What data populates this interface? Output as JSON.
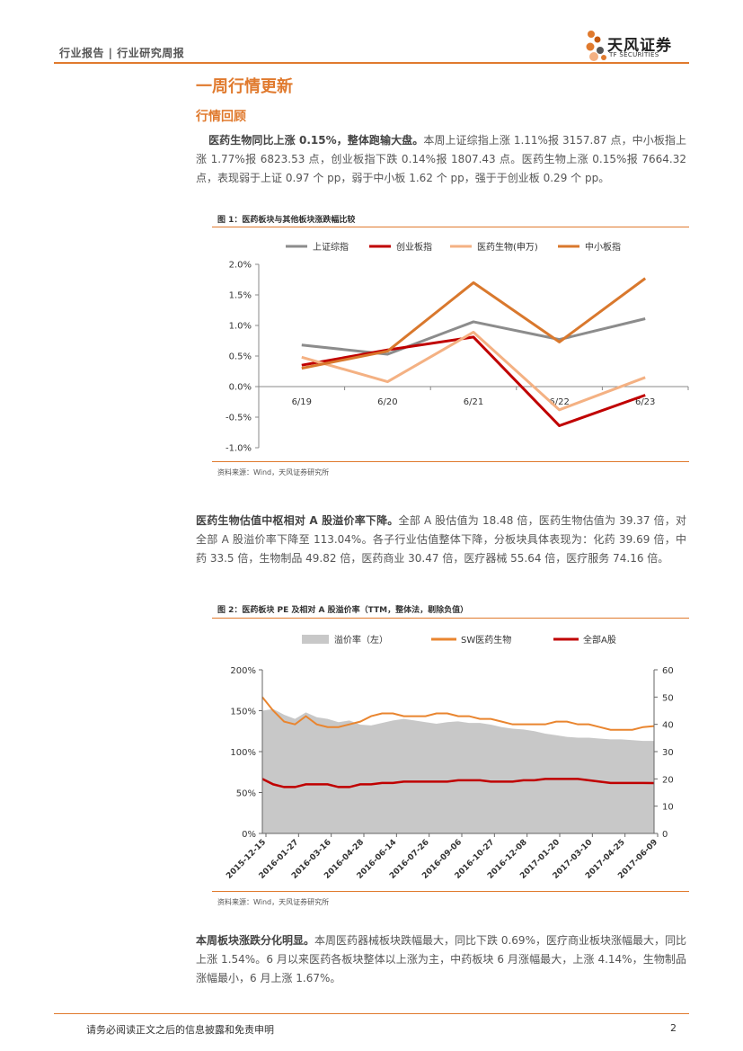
{
  "header": {
    "category": "行业报告 | 行业研究周报",
    "brand_cn": "天风证券",
    "brand_en": "TF SECURITIES"
  },
  "section": {
    "title": "一周行情更新",
    "subtitle": "行情回顾"
  },
  "paragraph1": {
    "lead": "医药生物同比上涨 0.15%，整体跑输大盘。",
    "text": "本周上证综指上涨 1.11%报 3157.87 点，中小板指上涨 1.77%报 6823.53 点，创业板指下跌 0.14%报 1807.43 点。医药生物上涨 0.15%报 7664.32 点，表现弱于上证 0.97 个 pp，弱于中小板 1.62 个 pp，强于于创业板 0.29 个 pp。"
  },
  "figure1": {
    "title": "图 1：医药板块与其他板块涨跌幅比较",
    "source": "资料来源：Wind，天风证券研究所"
  },
  "paragraph2": {
    "lead": "医药生物估值中枢相对 A 股溢价率下降。",
    "text": "全部 A 股估值为 18.48 倍，医药生物估值为 39.37 倍，对全部 A 股溢价率下降至 113.04%。各子行业估值整体下降，分板块具体表现为：化药 39.69 倍，中药 33.5 倍，生物制品 49.82 倍，医药商业 30.47 倍，医疗器械 55.64 倍，医疗服务 74.16 倍。"
  },
  "figure2": {
    "title": "图 2：医药板块 PE 及相对 A 股溢价率（TTM，整体法，剔除负值）",
    "source": "资料来源：Wind，天风证券研究所"
  },
  "paragraph3": {
    "lead": "本周板块涨跌分化明显。",
    "text": "本周医药器械板块跌幅最大，同比下跌 0.69%，医疗商业板块涨幅最大，同比上涨 1.54%。6 月以来医药各板块整体以上涨为主，中药板块 6 月涨幅最大，上涨 4.14%，生物制品涨幅最小，6 月上涨 1.67%。"
  },
  "footer": {
    "disclaimer": "请务必阅读正文之后的信息披露和免责申明",
    "page": "2"
  },
  "colors": {
    "accent": "#e07a2e",
    "gray": "#8c8c8c",
    "red": "#c00000",
    "light": "#f4b183",
    "orange": "#d9782d",
    "area": "#c8c8c8"
  },
  "chart_data": [
    {
      "type": "line",
      "categories": [
        "6/19",
        "6/20",
        "6/21",
        "6/22",
        "6/23"
      ],
      "series": [
        {
          "name": "上证综指",
          "values": [
            0.68,
            0.53,
            1.06,
            0.77,
            1.11
          ]
        },
        {
          "name": "创业板指",
          "values": [
            0.35,
            0.6,
            0.81,
            -0.64,
            -0.14
          ]
        },
        {
          "name": "医药生物(申万)",
          "values": [
            0.48,
            0.08,
            0.89,
            -0.38,
            0.15
          ]
        },
        {
          "name": "中小板指",
          "values": [
            0.3,
            0.58,
            1.7,
            0.73,
            1.77
          ]
        }
      ],
      "yticks": [
        "2.0%",
        "1.5%",
        "1.0%",
        "0.5%",
        "0.0%",
        "-0.5%",
        "-1.0%"
      ],
      "ylim": [
        -1.0,
        2.0
      ]
    },
    {
      "type": "area",
      "x_ticks": [
        "2015-12-15",
        "2016-01-27",
        "2016-03-16",
        "2016-04-28",
        "2016-06-14",
        "2016-07-26",
        "2016-09-06",
        "2016-10-27",
        "2016-12-08",
        "2017-01-20",
        "2017-03-10",
        "2017-04-25",
        "2017-06-09"
      ],
      "y_left_ticks": [
        "200%",
        "150%",
        "100%",
        "50%",
        "0%"
      ],
      "y_right_ticks": [
        "60",
        "50",
        "40",
        "30",
        "20",
        "10",
        "0"
      ],
      "legend": [
        "溢价率（左）",
        "SW医药生物",
        "全部A股"
      ],
      "series": [
        {
          "name": "溢价率（左）",
          "axis": "left",
          "values": [
            150,
            152,
            145,
            140,
            148,
            142,
            140,
            136,
            138,
            133,
            132,
            135,
            138,
            140,
            138,
            136,
            134,
            136,
            137,
            135,
            135,
            133,
            130,
            128,
            127,
            125,
            122,
            120,
            118,
            117,
            117,
            116,
            115,
            115,
            114,
            113,
            113
          ]
        },
        {
          "name": "SW医药生物",
          "axis": "right",
          "values": [
            50,
            45,
            41,
            40,
            43,
            40,
            39,
            39,
            40,
            41,
            43,
            44,
            44,
            43,
            43,
            43,
            44,
            44,
            43,
            43,
            42,
            42,
            41,
            40,
            40,
            40,
            40,
            41,
            41,
            40,
            40,
            39,
            38,
            38,
            38,
            39,
            39.37
          ]
        },
        {
          "name": "全部A股",
          "axis": "right",
          "values": [
            20,
            18,
            17,
            17,
            18,
            18,
            18,
            17,
            17,
            18,
            18,
            18.5,
            18.5,
            19,
            19,
            19,
            19,
            19,
            19.5,
            19.5,
            19.5,
            19,
            19,
            19,
            19.5,
            19.5,
            20,
            20,
            20,
            20,
            19.5,
            19,
            18.5,
            18.5,
            18.5,
            18.5,
            18.48
          ]
        }
      ],
      "ylim_left": [
        0,
        200
      ],
      "ylim_right": [
        0,
        60
      ]
    }
  ]
}
